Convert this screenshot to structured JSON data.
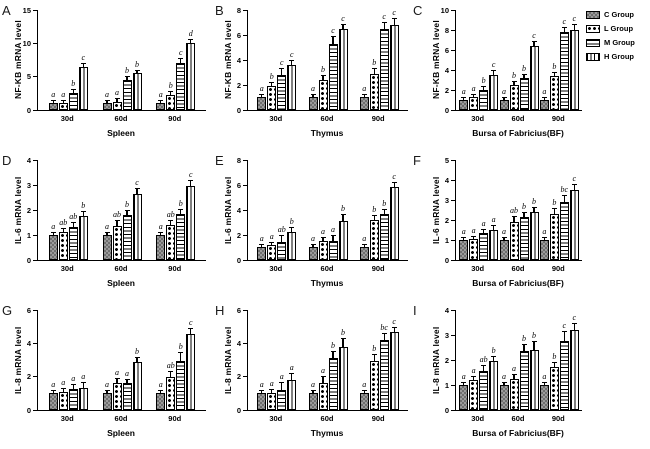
{
  "figure": {
    "background": "#ffffff",
    "axis_color": "#000000",
    "bar_fill": "#ffffff",
    "dark_fill": "#8a8a8a"
  },
  "legend": {
    "position": "top-right",
    "items": [
      {
        "label": "C Group",
        "pattern": "dark-checker"
      },
      {
        "label": "L Group",
        "pattern": "polka-dots"
      },
      {
        "label": "M Group",
        "pattern": "horizontal-lines"
      },
      {
        "label": "H Group",
        "pattern": "vertical-lines"
      }
    ]
  },
  "chart_data": [
    {
      "type": "bar",
      "panel": "A",
      "ylabel": "NF-KB mRNA level",
      "xlabel": "Spleen",
      "ylim": [
        0,
        15
      ],
      "yticks": [
        0,
        5,
        10,
        15
      ],
      "grid": false,
      "categories": [
        "30d",
        "60d",
        "90d"
      ],
      "series": [
        {
          "name": "C Group",
          "values": [
            1.0,
            1.0,
            1.0
          ],
          "errors": [
            0.15,
            0.15,
            0.15
          ],
          "sig_letters": [
            "a",
            "a",
            "a"
          ]
        },
        {
          "name": "L Group",
          "values": [
            1.1,
            1.2,
            2.3
          ],
          "errors": [
            0.25,
            0.4,
            0.4
          ],
          "sig_letters": [
            "a",
            "a",
            "b"
          ]
        },
        {
          "name": "M Group",
          "values": [
            2.6,
            4.5,
            7.0
          ],
          "errors": [
            0.5,
            0.5,
            0.55
          ],
          "sig_letters": [
            "b",
            "b",
            "c"
          ]
        },
        {
          "name": "H Group",
          "values": [
            6.5,
            5.5,
            10.0
          ],
          "errors": [
            0.5,
            0.35,
            0.4
          ],
          "sig_letters": [
            "c",
            "b",
            "d"
          ]
        }
      ]
    },
    {
      "type": "bar",
      "panel": "B",
      "ylabel": "NF-KB mRNA level",
      "xlabel": "Thymus",
      "ylim": [
        0,
        8
      ],
      "yticks": [
        0,
        2,
        4,
        6,
        8
      ],
      "grid": false,
      "categories": [
        "30d",
        "60d",
        "90d"
      ],
      "series": [
        {
          "name": "C Group",
          "values": [
            1.0,
            1.0,
            1.0
          ],
          "errors": [
            0.1,
            0.12,
            0.12
          ],
          "sig_letters": [
            "a",
            "a",
            "a"
          ]
        },
        {
          "name": "L Group",
          "values": [
            1.9,
            2.4,
            2.9
          ],
          "errors": [
            0.2,
            0.3,
            0.4
          ],
          "sig_letters": [
            "b",
            "b",
            "b"
          ]
        },
        {
          "name": "M Group",
          "values": [
            2.8,
            5.3,
            6.5
          ],
          "errors": [
            0.45,
            0.55,
            0.45
          ],
          "sig_letters": [
            "c",
            "c",
            "c"
          ]
        },
        {
          "name": "H Group",
          "values": [
            3.6,
            6.5,
            6.8
          ],
          "errors": [
            0.3,
            0.35,
            0.45
          ],
          "sig_letters": [
            "c",
            "c",
            "c"
          ]
        }
      ]
    },
    {
      "type": "bar",
      "panel": "C",
      "ylabel": "NF-KB mRNA level",
      "xlabel": "Bursa of Fabricius(BF)",
      "ylim": [
        0,
        10
      ],
      "yticks": [
        0,
        2,
        4,
        6,
        8,
        10
      ],
      "grid": false,
      "categories": [
        "30d",
        "60d",
        "90d"
      ],
      "series": [
        {
          "name": "C Group",
          "values": [
            1.0,
            1.0,
            1.0
          ],
          "errors": [
            0.12,
            0.12,
            0.12
          ],
          "sig_letters": [
            "a",
            "a",
            "a"
          ]
        },
        {
          "name": "L Group",
          "values": [
            1.3,
            2.5,
            3.4
          ],
          "errors": [
            0.2,
            0.3,
            0.3
          ],
          "sig_letters": [
            "a",
            "b",
            "b"
          ]
        },
        {
          "name": "M Group",
          "values": [
            2.0,
            3.2,
            7.8
          ],
          "errors": [
            0.25,
            0.35,
            0.4
          ],
          "sig_letters": [
            "b",
            "b",
            "c"
          ]
        },
        {
          "name": "H Group",
          "values": [
            3.5,
            6.4,
            8.0
          ],
          "errors": [
            0.4,
            0.4,
            0.5
          ],
          "sig_letters": [
            "c",
            "c",
            "c"
          ]
        }
      ]
    },
    {
      "type": "bar",
      "panel": "D",
      "ylabel": "IL-6 mRNA level",
      "xlabel": "Spleen",
      "ylim": [
        0,
        4
      ],
      "yticks": [
        0,
        1,
        2,
        3,
        4
      ],
      "grid": false,
      "categories": [
        "30d",
        "60d",
        "90d"
      ],
      "series": [
        {
          "name": "C Group",
          "values": [
            1.0,
            1.0,
            1.0
          ],
          "errors": [
            0.07,
            0.07,
            0.07
          ],
          "sig_letters": [
            "a",
            "a",
            "a"
          ]
        },
        {
          "name": "L Group",
          "values": [
            1.1,
            1.35,
            1.4
          ],
          "errors": [
            0.12,
            0.2,
            0.15
          ],
          "sig_letters": [
            "ab",
            "ab",
            "ab"
          ]
        },
        {
          "name": "M Group",
          "values": [
            1.3,
            1.8,
            1.85
          ],
          "errors": [
            0.15,
            0.15,
            0.15
          ],
          "sig_letters": [
            "ab",
            "b",
            "b"
          ]
        },
        {
          "name": "H Group",
          "values": [
            1.75,
            2.65,
            2.95
          ],
          "errors": [
            0.15,
            0.2,
            0.2
          ],
          "sig_letters": [
            "b",
            "c",
            "c"
          ]
        }
      ]
    },
    {
      "type": "bar",
      "panel": "E",
      "ylabel": "IL-6 mRNA level",
      "xlabel": "Thymus",
      "ylim": [
        0,
        8
      ],
      "yticks": [
        0,
        2,
        4,
        6,
        8
      ],
      "grid": false,
      "categories": [
        "30d",
        "60d",
        "90d"
      ],
      "series": [
        {
          "name": "C Group",
          "values": [
            1.0,
            1.0,
            1.0
          ],
          "errors": [
            0.1,
            0.12,
            0.12
          ],
          "sig_letters": [
            "a",
            "a",
            "a"
          ]
        },
        {
          "name": "L Group",
          "values": [
            1.2,
            1.5,
            3.2
          ],
          "errors": [
            0.15,
            0.25,
            0.3
          ],
          "sig_letters": [
            "a",
            "a",
            "b"
          ]
        },
        {
          "name": "M Group",
          "values": [
            1.45,
            1.55,
            3.7
          ],
          "errors": [
            0.45,
            0.4,
            0.3
          ],
          "sig_letters": [
            "ab",
            "a",
            "b"
          ]
        },
        {
          "name": "H Group",
          "values": [
            2.2,
            3.1,
            5.85
          ],
          "errors": [
            0.35,
            0.45,
            0.35
          ],
          "sig_letters": [
            "b",
            "b",
            "c"
          ]
        }
      ]
    },
    {
      "type": "bar",
      "panel": "F",
      "ylabel": "IL-6 mRNA level",
      "xlabel": "Bursa of Fabricius(BF)",
      "ylim": [
        0,
        5
      ],
      "yticks": [
        0,
        1,
        2,
        3,
        4,
        5
      ],
      "grid": false,
      "categories": [
        "30d",
        "60d",
        "90d"
      ],
      "series": [
        {
          "name": "C Group",
          "values": [
            1.0,
            1.0,
            1.0
          ],
          "errors": [
            0.07,
            0.07,
            0.07
          ],
          "sig_letters": [
            "a",
            "a",
            "a"
          ]
        },
        {
          "name": "L Group",
          "values": [
            1.05,
            1.9,
            2.3
          ],
          "errors": [
            0.1,
            0.25,
            0.25
          ],
          "sig_letters": [
            "a",
            "ab",
            "b"
          ]
        },
        {
          "name": "M Group",
          "values": [
            1.35,
            2.15,
            2.9
          ],
          "errors": [
            0.15,
            0.2,
            0.3
          ],
          "sig_letters": [
            "a",
            "b",
            "bc"
          ]
        },
        {
          "name": "H Group",
          "values": [
            1.5,
            2.4,
            3.5
          ],
          "errors": [
            0.2,
            0.2,
            0.25
          ],
          "sig_letters": [
            "a",
            "b",
            "c"
          ]
        }
      ]
    },
    {
      "type": "bar",
      "panel": "G",
      "ylabel": "IL-8 mRNA level",
      "xlabel": "Spleen",
      "ylim": [
        0,
        6
      ],
      "yticks": [
        0,
        2,
        4,
        6
      ],
      "grid": false,
      "categories": [
        "30d",
        "60d",
        "90d"
      ],
      "series": [
        {
          "name": "C Group",
          "values": [
            1.0,
            1.0,
            1.0
          ],
          "errors": [
            0.1,
            0.1,
            0.1
          ],
          "sig_letters": [
            "a",
            "a",
            "a"
          ]
        },
        {
          "name": "L Group",
          "values": [
            1.05,
            1.6,
            2.0
          ],
          "errors": [
            0.15,
            0.25,
            0.3
          ],
          "sig_letters": [
            "a",
            "a",
            "ab"
          ]
        },
        {
          "name": "M Group",
          "values": [
            1.25,
            1.65,
            2.95
          ],
          "errors": [
            0.25,
            0.2,
            0.45
          ],
          "sig_letters": [
            "a",
            "a",
            "b"
          ]
        },
        {
          "name": "H Group",
          "values": [
            1.3,
            2.9,
            4.55
          ],
          "errors": [
            0.3,
            0.25,
            0.3
          ],
          "sig_letters": [
            "a",
            "b",
            "c"
          ]
        }
      ]
    },
    {
      "type": "bar",
      "panel": "H",
      "ylabel": "IL-8 mRNA level",
      "xlabel": "Thymus",
      "ylim": [
        0,
        6
      ],
      "yticks": [
        0,
        2,
        4,
        6
      ],
      "grid": false,
      "categories": [
        "30d",
        "60d",
        "90d"
      ],
      "series": [
        {
          "name": "C Group",
          "values": [
            1.0,
            1.0,
            1.0
          ],
          "errors": [
            0.12,
            0.12,
            0.12
          ],
          "sig_letters": [
            "a",
            "a",
            "a"
          ]
        },
        {
          "name": "L Group",
          "values": [
            1.0,
            1.6,
            2.95
          ],
          "errors": [
            0.2,
            0.35,
            0.35
          ],
          "sig_letters": [
            "a",
            "a",
            "b"
          ]
        },
        {
          "name": "M Group",
          "values": [
            1.2,
            3.1,
            4.2
          ],
          "errors": [
            0.4,
            0.35,
            0.35
          ],
          "sig_letters": [
            "a",
            "b",
            "bc"
          ]
        },
        {
          "name": "H Group",
          "values": [
            1.8,
            3.75,
            4.7
          ],
          "errors": [
            0.35,
            0.45,
            0.25
          ],
          "sig_letters": [
            "a",
            "b",
            "c"
          ]
        }
      ]
    },
    {
      "type": "bar",
      "panel": "I",
      "ylabel": "IL-8 mRNA level",
      "xlabel": "Bursa of Fabricius(BF)",
      "ylim": [
        0,
        4
      ],
      "yticks": [
        0,
        1,
        2,
        3,
        4
      ],
      "grid": false,
      "categories": [
        "30d",
        "60d",
        "90d"
      ],
      "series": [
        {
          "name": "C Group",
          "values": [
            1.0,
            1.0,
            1.0
          ],
          "errors": [
            0.08,
            0.08,
            0.08
          ],
          "sig_letters": [
            "a",
            "a",
            "a"
          ]
        },
        {
          "name": "L Group",
          "values": [
            1.2,
            1.25,
            1.7
          ],
          "errors": [
            0.12,
            0.15,
            0.15
          ],
          "sig_letters": [
            "a",
            "a",
            "b"
          ]
        },
        {
          "name": "M Group",
          "values": [
            1.55,
            2.35,
            2.75
          ],
          "errors": [
            0.2,
            0.25,
            0.35
          ],
          "sig_letters": [
            "ab",
            "b",
            "c"
          ]
        },
        {
          "name": "H Group",
          "values": [
            1.95,
            2.4,
            3.2
          ],
          "errors": [
            0.15,
            0.3,
            0.25
          ],
          "sig_letters": [
            "b",
            "b",
            "c"
          ]
        }
      ]
    }
  ]
}
